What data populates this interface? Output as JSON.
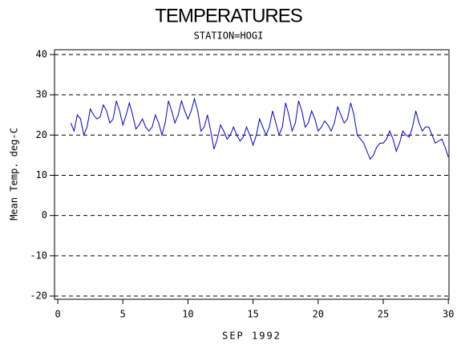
{
  "chart_data": {
    "type": "line",
    "title": "TEMPERATURES",
    "subtitle": "STATION=HOGI",
    "x_label": "SEP 1992",
    "y_label": "Mean Temp. deg-C",
    "color": "#0000cc",
    "grid": true,
    "xlim": [
      -0.25,
      30.05
    ],
    "ylim": [
      -20.8,
      41.2
    ],
    "xticks": [
      0,
      5,
      10,
      15,
      20,
      25,
      30
    ],
    "yticks": [
      -20,
      -10,
      0,
      10,
      20,
      30,
      40
    ],
    "x": [
      1,
      1.25,
      1.5,
      1.75,
      2,
      2.25,
      2.5,
      2.75,
      3,
      3.25,
      3.5,
      3.75,
      4,
      4.25,
      4.5,
      4.75,
      5,
      5.25,
      5.5,
      5.75,
      6,
      6.25,
      6.5,
      6.75,
      7,
      7.25,
      7.5,
      7.75,
      8,
      8.25,
      8.5,
      8.75,
      9,
      9.25,
      9.5,
      9.75,
      10,
      10.25,
      10.5,
      10.75,
      11,
      11.25,
      11.5,
      11.75,
      12,
      12.25,
      12.5,
      12.75,
      13,
      13.25,
      13.5,
      13.75,
      14,
      14.25,
      14.5,
      14.75,
      15,
      15.25,
      15.5,
      15.75,
      16,
      16.25,
      16.5,
      16.75,
      17,
      17.25,
      17.5,
      17.75,
      18,
      18.25,
      18.5,
      18.75,
      19,
      19.25,
      19.5,
      19.75,
      20,
      20.25,
      20.5,
      20.75,
      21,
      21.25,
      21.5,
      21.75,
      22,
      22.25,
      22.5,
      22.75,
      23,
      23.25,
      23.5,
      23.75,
      24,
      24.25,
      24.5,
      24.75,
      25,
      25.25,
      25.5,
      25.75,
      26,
      26.25,
      26.5,
      26.75,
      27,
      27.25,
      27.5,
      27.75,
      28,
      28.25,
      28.5,
      28.75,
      29,
      29.25,
      29.5,
      29.75,
      30
    ],
    "values": [
      23,
      21,
      25,
      24,
      20,
      22,
      26.5,
      25,
      24,
      24.5,
      27.5,
      26,
      23,
      24,
      28.5,
      26,
      22.5,
      25,
      28,
      25,
      21.5,
      22.5,
      24,
      22,
      21,
      22,
      25,
      23,
      20,
      23,
      28.5,
      26,
      23,
      25,
      28.5,
      26,
      24,
      26,
      29,
      26,
      21,
      22,
      25,
      21,
      16.5,
      19,
      22.5,
      21,
      19,
      20,
      22,
      20,
      18.5,
      19.5,
      22,
      20,
      17.5,
      20,
      24,
      22,
      20,
      22,
      26,
      23,
      20,
      22,
      28,
      25,
      21,
      23,
      28.5,
      26,
      22,
      23,
      26,
      24,
      21,
      22,
      23.5,
      22.5,
      21,
      23,
      27,
      25,
      23,
      24,
      28,
      25,
      20,
      19,
      18,
      16,
      14,
      15,
      17,
      18,
      18,
      19,
      21,
      19,
      16,
      18,
      21,
      20,
      19.5,
      22,
      26,
      23,
      21,
      22,
      22,
      20,
      18,
      18.5,
      19,
      17,
      14.5
    ]
  }
}
